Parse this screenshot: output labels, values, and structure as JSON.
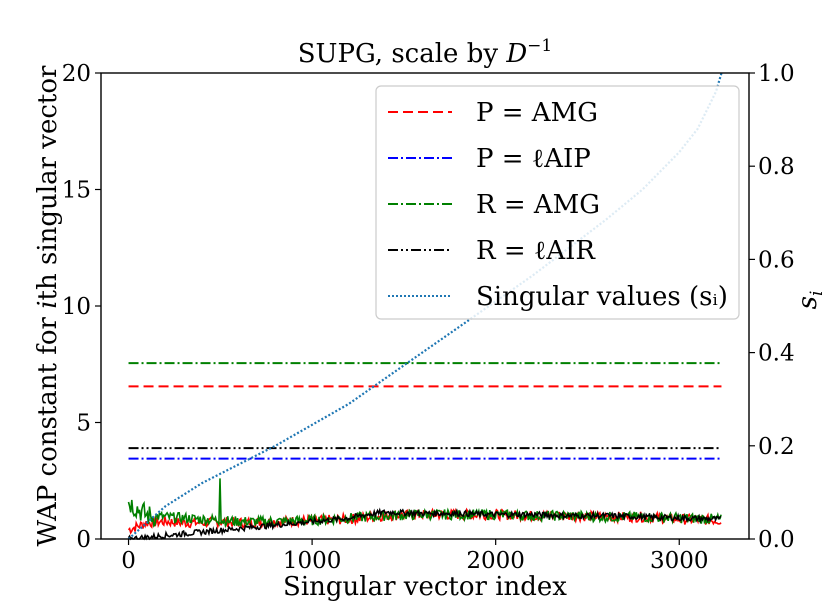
{
  "chart_data": {
    "type": "line",
    "title": "SUPG, scale by D⁻¹",
    "xlabel": "Singular vector index",
    "ylabel": "WAP constant for ith singular vector",
    "y2label": "sᵢ",
    "xlim": [
      -150,
      3380
    ],
    "ylim": [
      0,
      20
    ],
    "y2lim": [
      0.0,
      1.0
    ],
    "xticks": [
      0,
      1000,
      2000,
      3000
    ],
    "yticks": [
      0,
      5,
      10,
      15,
      20
    ],
    "y2ticks": [
      0.0,
      0.2,
      0.4,
      0.6,
      0.8,
      1.0
    ],
    "xtick_labels": [
      "0",
      "1000",
      "2000",
      "3000"
    ],
    "ytick_labels": [
      "0",
      "5",
      "10",
      "15",
      "20"
    ],
    "y2tick_labels": [
      "0.0",
      "0.2",
      "0.4",
      "0.6",
      "0.8",
      "1.0"
    ],
    "legend_position": "upper right",
    "series": [
      {
        "name": "P = AMG",
        "style": "dashed",
        "color": "#ff0000",
        "constant": 6.55,
        "x_range": [
          0,
          3230
        ]
      },
      {
        "name": "P = ℓAIP",
        "style": "dashdot",
        "color": "#0000ff",
        "constant": 3.45,
        "x_range": [
          0,
          3230
        ]
      },
      {
        "name": "R = AMG",
        "style": "dashdot",
        "color": "#008000",
        "constant": 7.55,
        "x_range": [
          0,
          3230
        ]
      },
      {
        "name": "R = ℓAIR",
        "style": "dashdotdot",
        "color": "#000000",
        "constant": 3.9,
        "x_range": [
          0,
          3230
        ]
      },
      {
        "name": "Singular values (sᵢ)",
        "style": "dotted",
        "color": "#1f77b4",
        "axis": "right",
        "x": [
          0,
          200,
          400,
          600,
          800,
          1000,
          1200,
          1400,
          1600,
          1800,
          2000,
          2200,
          2400,
          2600,
          2800,
          3000,
          3100,
          3200,
          3230
        ],
        "values": [
          0.0,
          0.07,
          0.12,
          0.16,
          0.2,
          0.245,
          0.29,
          0.345,
          0.4,
          0.455,
          0.51,
          0.565,
          0.625,
          0.685,
          0.75,
          0.83,
          0.88,
          0.96,
          1.0
        ]
      }
    ],
    "noisy_series": [
      {
        "name": "P = AMG per-vector",
        "color": "#ff0000",
        "x": [
          0,
          100,
          200,
          300,
          400,
          500,
          600,
          800,
          1000,
          1200,
          1400,
          1600,
          1800,
          2000,
          2200,
          2400,
          2600,
          2800,
          3000,
          3230
        ],
        "values": [
          0.4,
          0.7,
          0.75,
          0.7,
          0.7,
          0.75,
          0.7,
          0.75,
          0.8,
          0.85,
          1.0,
          1.05,
          1.05,
          1.05,
          1.0,
          1.0,
          0.95,
          0.95,
          0.85,
          0.8
        ]
      },
      {
        "name": "R = AMG per-vector",
        "color": "#008000",
        "x": [
          0,
          50,
          100,
          200,
          300,
          400,
          500,
          600,
          800,
          1000,
          1200,
          1400,
          1600,
          1800,
          2000,
          2200,
          2400,
          2600,
          2800,
          3000,
          3230
        ],
        "values": [
          1.6,
          1.3,
          1.0,
          0.95,
          0.9,
          0.85,
          0.8,
          0.75,
          0.75,
          0.8,
          0.9,
          1.0,
          1.05,
          1.05,
          1.05,
          1.0,
          1.0,
          0.95,
          0.95,
          0.9,
          0.85
        ],
        "spike": {
          "x": 500,
          "value": 2.6
        }
      },
      {
        "name": "R = ℓAIR per-vector",
        "color": "#000000",
        "x": [
          0,
          200,
          400,
          600,
          800,
          1000,
          1200,
          1300,
          1400,
          1600,
          1800,
          2000,
          2200,
          2400,
          2600,
          2800,
          3000,
          3230
        ],
        "values": [
          0.0,
          0.15,
          0.3,
          0.45,
          0.6,
          0.75,
          0.9,
          1.05,
          1.15,
          1.1,
          1.1,
          1.05,
          1.05,
          1.0,
          1.0,
          0.95,
          0.9,
          0.85
        ]
      }
    ]
  }
}
